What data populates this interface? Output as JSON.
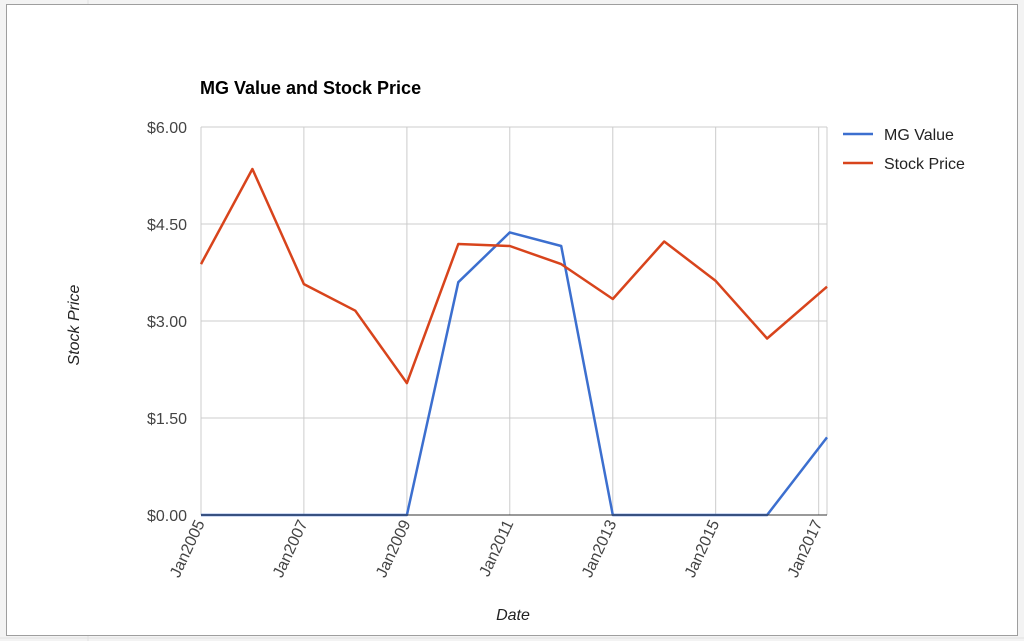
{
  "chart_data": {
    "type": "line",
    "title": "MG Value and Stock Price",
    "xlabel": "Date",
    "ylabel": "Stock Price",
    "ylim": [
      0,
      6
    ],
    "xlim": [
      "Jan2005",
      "Mar2017"
    ],
    "yticks": [
      {
        "value": 0,
        "label": "$0.00"
      },
      {
        "value": 1.5,
        "label": "$1.50"
      },
      {
        "value": 3,
        "label": "$3.00"
      },
      {
        "value": 4.5,
        "label": "$4.50"
      },
      {
        "value": 6,
        "label": "$6.00"
      }
    ],
    "xticks": [
      {
        "date": "2005-01-01",
        "label": "Jan2005"
      },
      {
        "date": "2007-01-01",
        "label": "Jan2007"
      },
      {
        "date": "2009-01-01",
        "label": "Jan2009"
      },
      {
        "date": "2011-01-01",
        "label": "Jan2011"
      },
      {
        "date": "2013-01-01",
        "label": "Jan2013"
      },
      {
        "date": "2015-01-01",
        "label": "Jan2015"
      },
      {
        "date": "2017-01-01",
        "label": "Jan2017"
      }
    ],
    "x": [
      "2005-01-01",
      "2006-01-01",
      "2007-01-01",
      "2008-01-01",
      "2009-01-01",
      "2010-01-01",
      "2011-01-01",
      "2012-01-01",
      "2013-01-01",
      "2014-01-01",
      "2015-01-01",
      "2016-01-01",
      "2017-03-01"
    ],
    "series": [
      {
        "name": "MG Value",
        "color": "#3c6fcf",
        "values": [
          0,
          0,
          0,
          0,
          0,
          3.6,
          4.37,
          4.16,
          0,
          0,
          0,
          0,
          1.2
        ]
      },
      {
        "name": "Stock Price",
        "color": "#d8441c",
        "values": [
          3.88,
          5.35,
          3.57,
          3.16,
          2.04,
          4.19,
          4.16,
          3.88,
          3.34,
          4.23,
          3.62,
          2.73,
          3.53
        ]
      }
    ],
    "grid": true,
    "legend": "right"
  }
}
